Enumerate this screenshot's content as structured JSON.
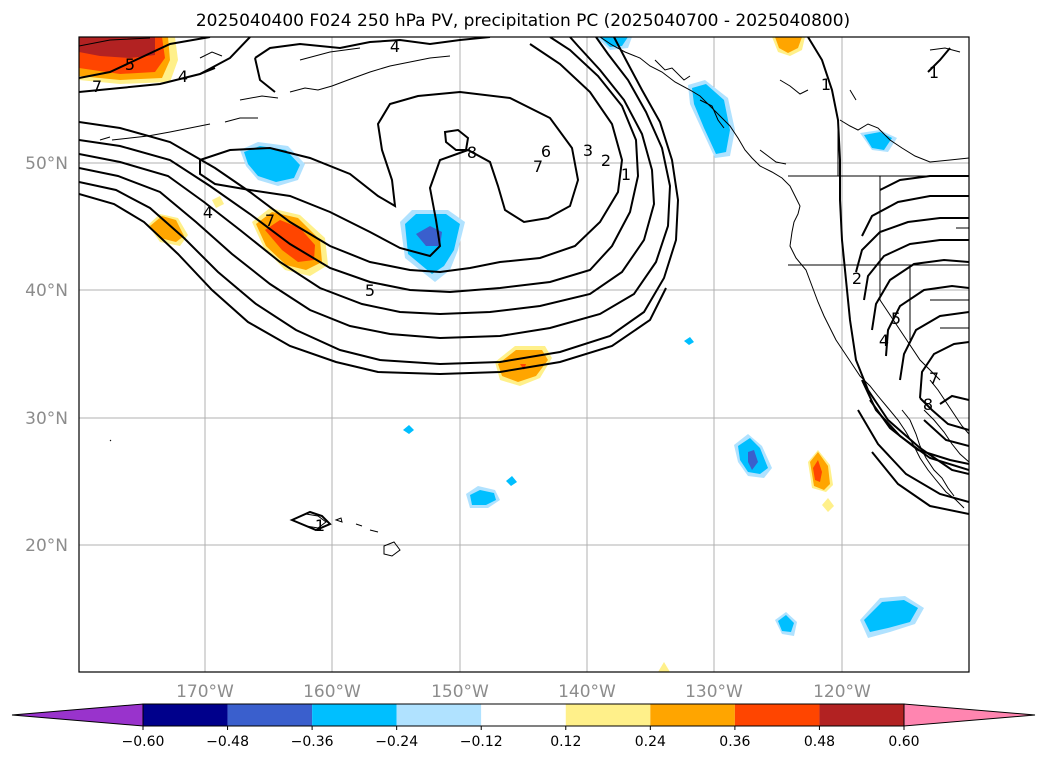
{
  "title": "2025040400 F024 250 hPa PV, precipitation PC (2025040700 - 2025040800)",
  "lat_labels": [
    "50°N",
    "40°N",
    "30°N",
    "20°N"
  ],
  "lon_labels": [
    "170°W",
    "160°W",
    "150°W",
    "140°W",
    "130°W",
    "120°W"
  ],
  "colorbar": {
    "labels": [
      "−0.60",
      "−0.48",
      "−0.36",
      "−0.24",
      "−0.12",
      "0.12",
      "0.24",
      "0.36",
      "0.48",
      "0.60"
    ],
    "colors": [
      "#9933cc",
      "#00008b",
      "#3a5fcd",
      "#00bfff",
      "#b0e2ff",
      "#ffffff",
      "#fff08a",
      "#ffa500",
      "#ff4500",
      "#b22222",
      "#ff85b0"
    ]
  },
  "contour_labels": [
    "5",
    "4",
    "7",
    "4",
    "7",
    "4",
    "5",
    "8",
    "6",
    "7",
    "3",
    "2",
    "1",
    "1",
    "1",
    "2",
    "4",
    "5",
    "7",
    "8",
    "1"
  ],
  "icon": "map-plot"
}
